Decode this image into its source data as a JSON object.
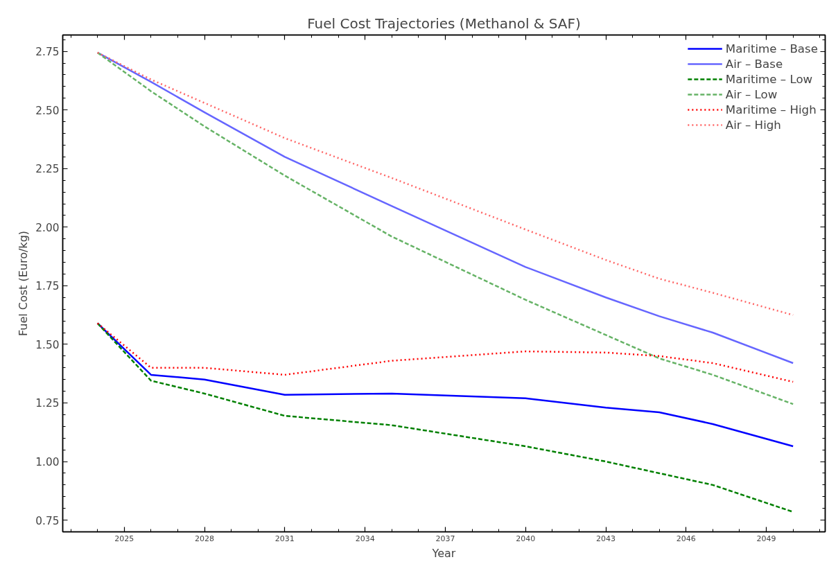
{
  "chart_data": {
    "type": "line",
    "title": "Fuel Cost Trajectories (Methanol & SAF)",
    "xlabel": "Year",
    "ylabel": "Fuel Cost (Euro/kg)",
    "x": [
      2024,
      2026,
      2028,
      2031,
      2035,
      2040,
      2043,
      2045,
      2047,
      2050
    ],
    "series": [
      {
        "name": "Maritime – Base",
        "color": "#0000ff",
        "line_style": "solid",
        "values": [
          1.59,
          1.37,
          1.35,
          1.285,
          1.29,
          1.27,
          1.23,
          1.21,
          1.16,
          1.065
        ]
      },
      {
        "name": "Air – Base",
        "color": "#6666ff",
        "line_style": "solid",
        "values": [
          2.745,
          2.62,
          2.49,
          2.3,
          2.09,
          1.83,
          1.7,
          1.62,
          1.55,
          1.42
        ]
      },
      {
        "name": "Maritime – Low",
        "color": "#008000",
        "line_style": "dashed",
        "values": [
          1.59,
          1.345,
          1.29,
          1.195,
          1.155,
          1.065,
          1.0,
          0.95,
          0.9,
          0.785
        ]
      },
      {
        "name": "Air – Low",
        "color": "#66b366",
        "line_style": "dashed",
        "values": [
          2.745,
          2.58,
          2.43,
          2.22,
          1.96,
          1.69,
          1.54,
          1.44,
          1.37,
          1.245
        ]
      },
      {
        "name": "Maritime – High",
        "color": "#ff0000",
        "line_style": "dotted",
        "values": [
          1.59,
          1.4,
          1.4,
          1.37,
          1.43,
          1.47,
          1.465,
          1.45,
          1.42,
          1.34
        ]
      },
      {
        "name": "Air – High",
        "color": "#ff6666",
        "line_style": "dotted",
        "values": [
          2.745,
          2.63,
          2.53,
          2.38,
          2.21,
          1.99,
          1.86,
          1.78,
          1.72,
          1.625
        ]
      }
    ],
    "xlim": [
      2022.7,
      2051.2
    ],
    "ylim": [
      0.7,
      2.82
    ],
    "xticks": [
      2025,
      2028,
      2031,
      2034,
      2037,
      2040,
      2043,
      2046,
      2049
    ],
    "yticks": [
      {
        "value": 0.75,
        "label": "0.75"
      },
      {
        "value": 1.0,
        "label": "1.00"
      },
      {
        "value": 1.25,
        "label": "1.25"
      },
      {
        "value": 1.5,
        "label": "1.50"
      },
      {
        "value": 1.75,
        "label": "1.75"
      },
      {
        "value": 2.0,
        "label": "2.00"
      },
      {
        "value": 2.25,
        "label": "2.25"
      },
      {
        "value": 2.5,
        "label": "2.50"
      },
      {
        "value": 2.75,
        "label": "2.75"
      }
    ],
    "grid": false,
    "legend": "top right"
  }
}
